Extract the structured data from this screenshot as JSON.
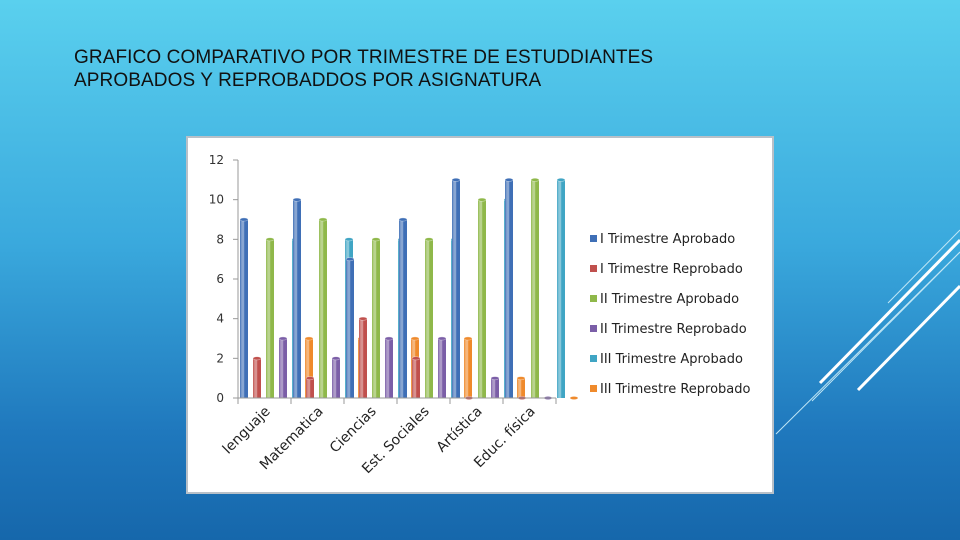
{
  "slide": {
    "title": "GRAFICO COMPARATIVO POR TRIMESTRE DE ESTUDDIANTES APROBADOS Y REPROBADDOS POR ASIGNATURA"
  },
  "chart_data": {
    "type": "bar",
    "title": "",
    "xlabel": "",
    "ylabel": "",
    "ylim": [
      0,
      12
    ],
    "yticks": [
      0,
      2,
      4,
      6,
      8,
      10,
      12
    ],
    "grid": false,
    "legend_position": "right",
    "categories": [
      "lenguaje",
      "Matematica",
      "Ciencias",
      "Est. Sociales",
      "Artística",
      "Educ. física"
    ],
    "series": [
      {
        "name": "I Trimestre Aprobado",
        "color": "#3f6fb6",
        "values": [
          9,
          10,
          7,
          9,
          11,
          11
        ]
      },
      {
        "name": "I Trimestre Reprobado",
        "color": "#c0504d",
        "values": [
          2,
          1,
          4,
          2,
          0,
          0
        ]
      },
      {
        "name": "II Trimestre Aprobado",
        "color": "#8fb84a",
        "values": [
          8,
          9,
          8,
          8,
          10,
          11
        ]
      },
      {
        "name": "II Trimestre Reprobado",
        "color": "#7b5ea7",
        "values": [
          3,
          2,
          3,
          3,
          1,
          0
        ]
      },
      {
        "name": "III Trimestre Aprobado",
        "color": "#40a5c4",
        "values": [
          8,
          8,
          8,
          8,
          10,
          11
        ]
      },
      {
        "name": "III Trimestre Reprobado",
        "color": "#ef8a2c",
        "values": [
          3,
          3,
          3,
          3,
          1,
          0
        ]
      }
    ]
  }
}
